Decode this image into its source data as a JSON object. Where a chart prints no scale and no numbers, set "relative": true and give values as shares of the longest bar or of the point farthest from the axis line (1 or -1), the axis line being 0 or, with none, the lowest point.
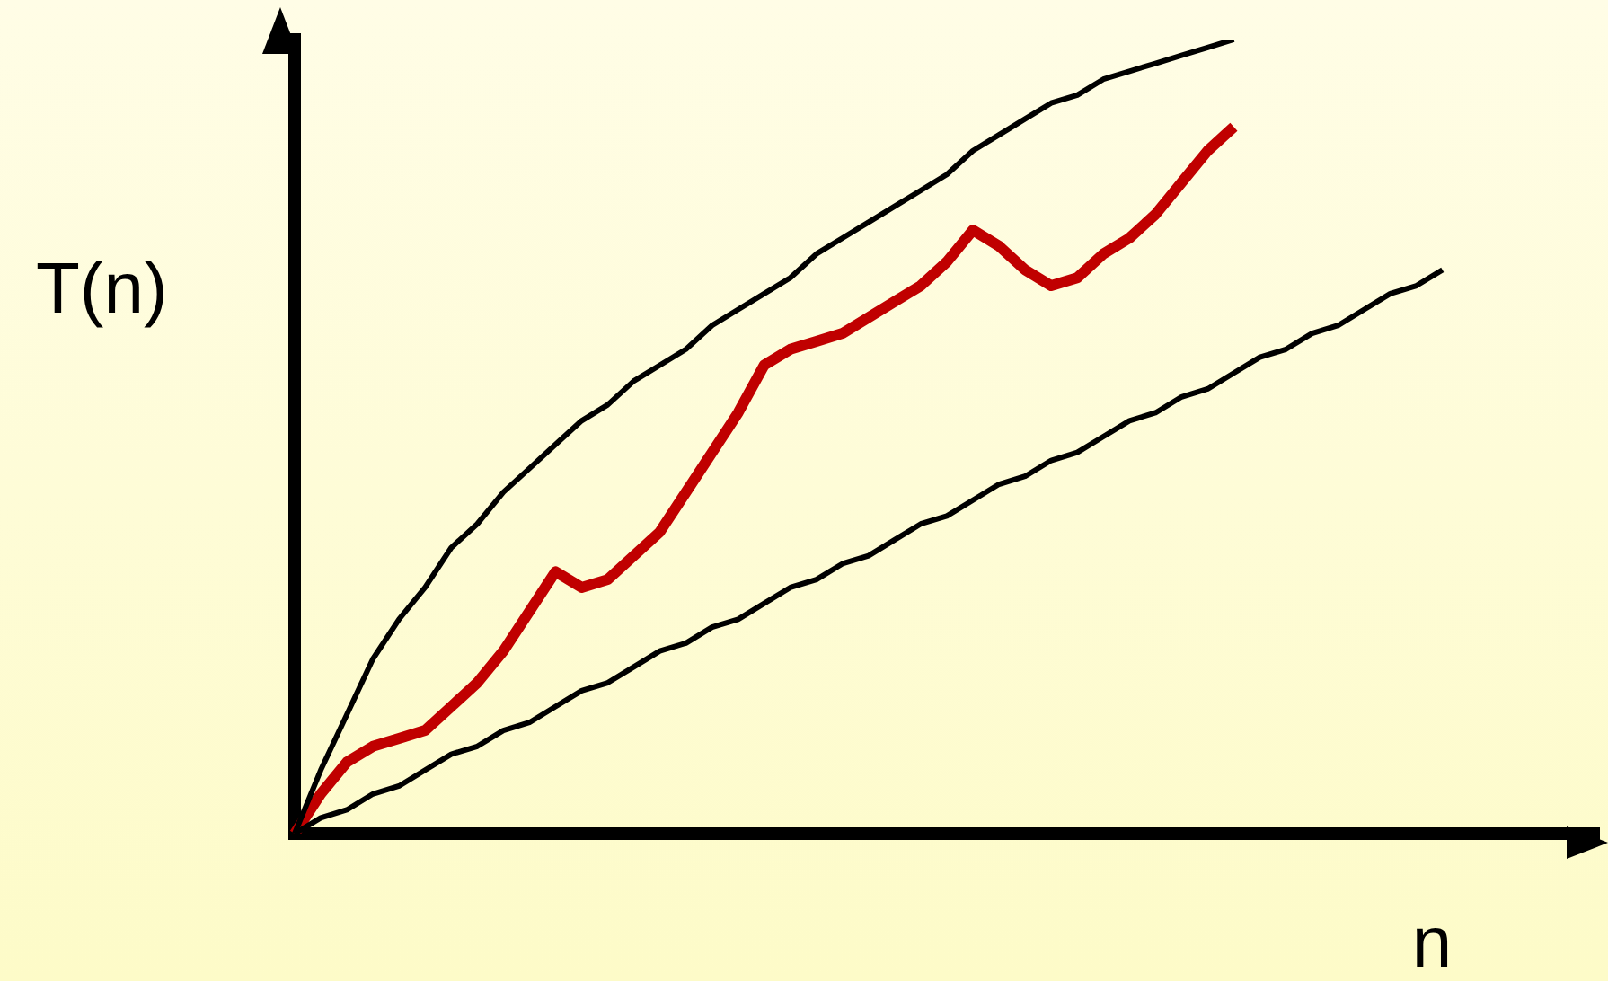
{
  "chart_data": {
    "type": "line",
    "relative": true,
    "ylabel": "T(n)",
    "xlabel": "n",
    "legend": false,
    "marker": "none",
    "line_style": "solid",
    "tick_labels": false,
    "categories": [
      null,
      null,
      null,
      null,
      null,
      null,
      null,
      null,
      null,
      null,
      null,
      null,
      null,
      null,
      null,
      null,
      null,
      null,
      null,
      null,
      null,
      null,
      null,
      null,
      null,
      null,
      null,
      null,
      null,
      null,
      null,
      null,
      null,
      null,
      null,
      null,
      null,
      null,
      null,
      null,
      null,
      null,
      null,
      null,
      null,
      null,
      null,
      null,
      null,
      null,
      null
    ],
    "series": [
      {
        "color": "#000000",
        "values": [
          0,
          0.08,
          0.15,
          0.22,
          0.27,
          0.31,
          0.36,
          0.39,
          0.43,
          0.46,
          0.49,
          0.52,
          0.54,
          0.57,
          0.59,
          0.61,
          0.64,
          0.66,
          0.68,
          0.7,
          0.73,
          0.75,
          0.77,
          0.79,
          0.81,
          0.83,
          0.86,
          0.88,
          0.9,
          0.92,
          0.93,
          0.95,
          0.96,
          0.97,
          0.98,
          0.99,
          1,
          null,
          null,
          null,
          null,
          null,
          null,
          null,
          null,
          null,
          null,
          null,
          null,
          null,
          null
        ]
      },
      {
        "color": "#000000",
        "values": [
          0,
          0.02,
          0.03,
          0.05,
          0.06,
          0.08,
          0.1,
          0.11,
          0.13,
          0.14,
          0.16,
          0.18,
          0.19,
          0.21,
          0.23,
          0.24,
          0.26,
          0.27,
          0.29,
          0.31,
          0.32,
          0.34,
          0.35,
          0.37,
          0.39,
          0.4,
          0.42,
          0.44,
          0.45,
          0.47,
          0.48,
          0.5,
          0.52,
          0.53,
          0.55,
          0.56,
          0.58,
          0.6,
          0.61,
          0.63,
          0.64,
          0.66,
          0.68,
          0.69,
          0.71,
          null,
          null,
          null,
          null,
          null,
          null
        ]
      },
      {
        "color": "#c00000",
        "values": [
          0,
          0.05,
          0.09,
          0.11,
          0.12,
          0.13,
          0.16,
          0.19,
          0.23,
          0.28,
          0.33,
          0.31,
          0.32,
          0.35,
          0.38,
          0.43,
          0.48,
          0.53,
          0.59,
          0.61,
          0.62,
          0.63,
          0.65,
          0.67,
          0.69,
          0.72,
          0.76,
          0.74,
          0.71,
          0.69,
          0.7,
          0.73,
          0.75,
          0.78,
          0.82,
          0.86,
          0.89,
          null,
          null,
          null,
          null,
          null,
          null,
          null,
          null,
          null,
          null,
          null,
          null,
          null,
          null
        ]
      }
    ]
  }
}
